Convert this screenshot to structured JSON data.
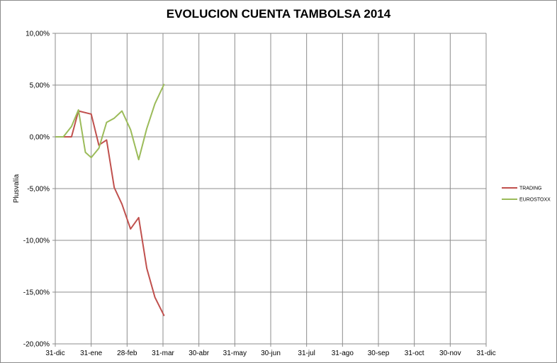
{
  "chart_data": {
    "type": "line",
    "title": "EVOLUCION CUENTA TAMBOLSA 2014",
    "xlabel": "",
    "ylabel": "Plusvalía",
    "ylim": [
      -0.2,
      0.1
    ],
    "x_ticks": [
      "31-dic",
      "31-ene",
      "28-feb",
      "31-mar",
      "30-abr",
      "31-may",
      "30-jun",
      "31-jul",
      "31-ago",
      "30-sep",
      "31-oct",
      "30-nov",
      "31-dic"
    ],
    "y_ticks": [
      "10,00%",
      "5,00%",
      "0,00%",
      "-5,00%",
      "-10,00%",
      "-15,00%",
      "-20,00%"
    ],
    "y_tick_values": [
      0.1,
      0.05,
      0.0,
      -0.05,
      -0.1,
      -0.15,
      -0.2
    ],
    "x_tick_dates": [
      "2013-12-31",
      "2014-01-31",
      "2014-02-28",
      "2014-03-31",
      "2014-04-30",
      "2014-05-31",
      "2014-06-30",
      "2014-07-31",
      "2014-08-31",
      "2014-09-30",
      "2014-10-31",
      "2014-11-30",
      "2014-12-31"
    ],
    "grid": true,
    "legend_position": "right",
    "series": [
      {
        "name": "TRADING",
        "color": "#c0504d",
        "points": [
          [
            "2013-12-31",
            0.0
          ],
          [
            "2014-01-07",
            0.0
          ],
          [
            "2014-01-14",
            0.0
          ],
          [
            "2014-01-20",
            0.025
          ],
          [
            "2014-01-31",
            0.022
          ],
          [
            "2014-02-06",
            -0.008
          ],
          [
            "2014-02-12",
            -0.003
          ],
          [
            "2014-02-18",
            -0.049
          ],
          [
            "2014-02-24",
            -0.065
          ],
          [
            "2014-03-03",
            -0.089
          ],
          [
            "2014-03-10",
            -0.078
          ],
          [
            "2014-03-17",
            -0.127
          ],
          [
            "2014-03-24",
            -0.155
          ],
          [
            "2014-04-01",
            -0.173
          ]
        ]
      },
      {
        "name": "EUROSTOXX",
        "color": "#9bbb59",
        "points": [
          [
            "2013-12-31",
            0.0
          ],
          [
            "2014-01-07",
            0.0
          ],
          [
            "2014-01-14",
            0.01
          ],
          [
            "2014-01-20",
            0.026
          ],
          [
            "2014-01-26",
            -0.015
          ],
          [
            "2014-01-31",
            -0.02
          ],
          [
            "2014-02-06",
            -0.011
          ],
          [
            "2014-02-12",
            0.014
          ],
          [
            "2014-02-18",
            0.018
          ],
          [
            "2014-02-24",
            0.025
          ],
          [
            "2014-03-03",
            0.007
          ],
          [
            "2014-03-10",
            -0.022
          ],
          [
            "2014-03-17",
            0.008
          ],
          [
            "2014-03-24",
            0.032
          ],
          [
            "2014-04-01",
            0.051
          ]
        ]
      }
    ]
  }
}
